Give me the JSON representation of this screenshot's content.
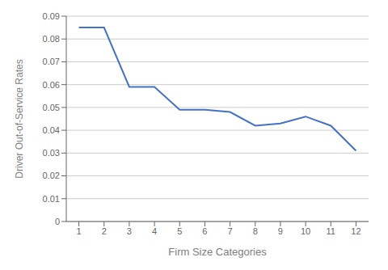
{
  "chart_data": {
    "type": "line",
    "x": [
      1,
      2,
      3,
      4,
      5,
      6,
      7,
      8,
      9,
      10,
      11,
      12
    ],
    "values": [
      0.085,
      0.085,
      0.059,
      0.059,
      0.049,
      0.049,
      0.048,
      0.042,
      0.043,
      0.046,
      0.042,
      0.031
    ],
    "color": "#4472C4",
    "xlabel": "Firm Size Categories",
    "ylabel": "Driver Out-of-Service Rates",
    "xlim": [
      0.5,
      12.5
    ],
    "ylim": [
      0,
      0.09
    ],
    "xticks": [
      1,
      2,
      3,
      4,
      5,
      6,
      7,
      8,
      9,
      10,
      11,
      12
    ],
    "yticks": [
      0,
      0.01,
      0.02,
      0.03,
      0.04,
      0.05,
      0.06,
      0.07,
      0.08,
      0.09
    ],
    "grid": "y"
  }
}
